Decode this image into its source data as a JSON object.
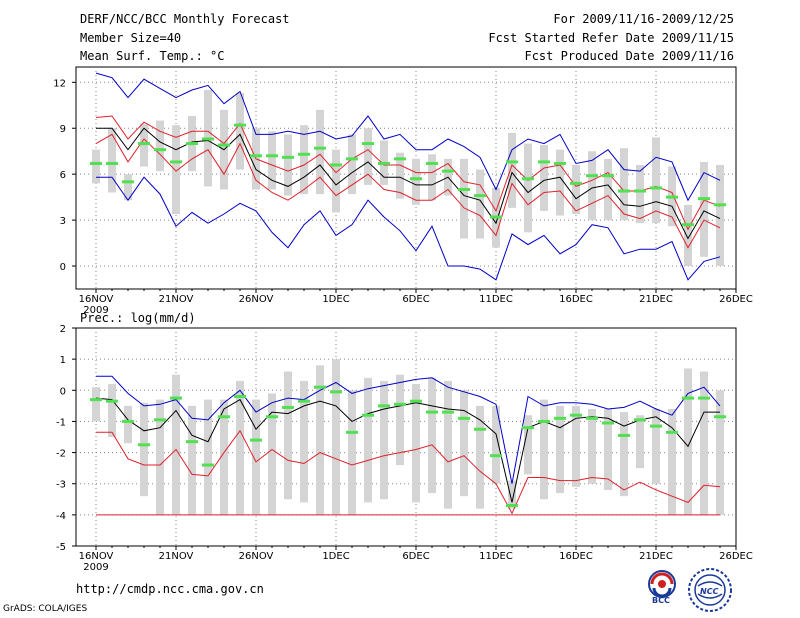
{
  "header": {
    "title": "DERF/NCC/BCC Monthly Forecast",
    "member_size": "Member Size=40",
    "variable": "Mean Surf. Temp.: °C",
    "period": "For 2009/11/16-2009/12/25",
    "started": "Fcst Started Refer Date 2009/11/15",
    "produced": "Fcst Produced Date 2009/11/16"
  },
  "footer": {
    "url": "http://cmdp.ncc.cma.gov.cn",
    "grads": "GrADS: COLA/IGES",
    "logo1_text": "BCC",
    "logo2_text": "NCC"
  },
  "colors": {
    "mean": "#000000",
    "upper": "#0000c8",
    "red": "#e0202a",
    "obs": "#50e050",
    "box": "#d4d4d4",
    "grid": "#888888"
  },
  "chart_data": [
    {
      "type": "line",
      "name": "temperature",
      "title": "",
      "ylabel": "",
      "ylim": [
        -1.5,
        13
      ],
      "yticks": [
        0,
        3,
        6,
        9,
        12
      ],
      "xlim": [
        0,
        40
      ],
      "xticks": [
        {
          "day": 0,
          "label": "16NOV"
        },
        {
          "day": 5,
          "label": "21NOV"
        },
        {
          "day": 10,
          "label": "26NOV"
        },
        {
          "day": 15,
          "label": "1DEC"
        },
        {
          "day": 20,
          "label": "6DEC"
        },
        {
          "day": 25,
          "label": "11DEC"
        },
        {
          "day": 30,
          "label": "16DEC"
        },
        {
          "day": 35,
          "label": "21DEC"
        },
        {
          "day": 40,
          "label": "26DEC"
        }
      ],
      "year_label": "2009",
      "x": [
        0,
        1,
        2,
        3,
        4,
        5,
        6,
        7,
        8,
        9,
        10,
        11,
        12,
        13,
        14,
        15,
        16,
        17,
        18,
        19,
        20,
        21,
        22,
        23,
        24,
        25,
        26,
        27,
        28,
        29,
        30,
        31,
        32,
        33,
        34,
        35,
        36,
        37,
        38,
        39
      ],
      "series": [
        {
          "name": "max",
          "color_key": "upper",
          "values": [
            12.6,
            12.3,
            11.0,
            12.2,
            11.6,
            11.0,
            11.5,
            11.8,
            10.6,
            11.4,
            8.6,
            8.6,
            8.8,
            8.6,
            8.8,
            8.3,
            8.5,
            9.8,
            8.3,
            8.6,
            7.6,
            7.6,
            8.3,
            7.8,
            7.1,
            5.0,
            7.6,
            8.3,
            8.0,
            8.6,
            6.7,
            6.9,
            7.6,
            6.3,
            6.2,
            7.1,
            6.8,
            4.3,
            6.1,
            5.6
          ]
        },
        {
          "name": "upper_red",
          "color_key": "red",
          "values": [
            9.7,
            9.8,
            8.3,
            9.4,
            8.8,
            8.4,
            8.8,
            8.8,
            8.0,
            9.3,
            7.0,
            6.6,
            6.2,
            6.6,
            7.3,
            6.1,
            7.0,
            7.6,
            6.6,
            6.6,
            6.1,
            6.1,
            6.7,
            5.5,
            5.3,
            3.6,
            6.6,
            5.6,
            6.4,
            6.6,
            5.2,
            5.6,
            6.1,
            4.9,
            4.9,
            5.2,
            4.8,
            2.4,
            4.3,
            3.9
          ]
        },
        {
          "name": "mean",
          "color_key": "mean",
          "values": [
            9.0,
            9.0,
            7.6,
            9.0,
            8.1,
            7.6,
            8.1,
            8.2,
            7.6,
            8.6,
            6.3,
            5.6,
            5.2,
            5.8,
            6.6,
            5.3,
            6.1,
            6.8,
            5.8,
            5.8,
            5.3,
            5.3,
            5.8,
            4.6,
            4.3,
            2.8,
            6.1,
            4.8,
            5.6,
            5.8,
            4.4,
            5.1,
            5.3,
            4.0,
            3.9,
            4.2,
            3.9,
            1.8,
            3.6,
            3.1
          ]
        },
        {
          "name": "lower_red",
          "color_key": "red",
          "values": [
            8.0,
            8.6,
            6.8,
            8.3,
            7.3,
            6.2,
            7.0,
            7.6,
            6.0,
            8.0,
            5.6,
            4.8,
            4.3,
            5.0,
            5.8,
            4.6,
            5.3,
            6.0,
            5.0,
            4.8,
            4.3,
            4.3,
            5.0,
            3.8,
            3.3,
            2.0,
            5.4,
            4.0,
            4.8,
            4.9,
            3.6,
            4.1,
            4.6,
            3.4,
            3.1,
            3.6,
            3.2,
            1.2,
            3.0,
            2.5
          ]
        },
        {
          "name": "min",
          "color_key": "upper",
          "values": [
            5.8,
            5.8,
            4.3,
            5.8,
            4.7,
            2.6,
            3.5,
            2.8,
            3.4,
            4.1,
            3.6,
            2.2,
            1.2,
            2.7,
            3.6,
            2.0,
            2.7,
            4.3,
            3.2,
            2.3,
            1.0,
            2.6,
            0.0,
            0.0,
            -0.2,
            -0.9,
            2.1,
            1.4,
            2.0,
            0.8,
            1.4,
            2.7,
            2.5,
            0.8,
            1.1,
            1.1,
            1.6,
            -0.9,
            0.3,
            0.6
          ]
        }
      ],
      "obs": [
        6.7,
        6.7,
        5.5,
        8.0,
        7.6,
        6.8,
        8.0,
        8.3,
        7.9,
        9.2,
        7.2,
        7.2,
        7.1,
        7.3,
        7.7,
        6.6,
        7.0,
        8.0,
        6.7,
        7.0,
        5.7,
        6.7,
        6.2,
        5.0,
        4.6,
        3.2,
        6.8,
        5.7,
        6.8,
        6.7,
        5.4,
        5.9,
        5.9,
        4.9,
        4.9,
        5.1,
        4.5,
        2.7,
        4.4,
        4.0
      ],
      "boxes": [
        {
          "lo": 5.4,
          "hi": 7.6
        },
        {
          "lo": 4.8,
          "hi": 9.0
        },
        {
          "lo": 4.3,
          "hi": 6.0
        },
        {
          "lo": 6.5,
          "hi": 9.3
        },
        {
          "lo": 6.2,
          "hi": 9.5
        },
        {
          "lo": 3.4,
          "hi": 9.2
        },
        {
          "lo": 6.2,
          "hi": 9.8
        },
        {
          "lo": 5.2,
          "hi": 11.5
        },
        {
          "lo": 5.0,
          "hi": 10.2
        },
        {
          "lo": 6.3,
          "hi": 11.3
        },
        {
          "lo": 5.0,
          "hi": 9.0
        },
        {
          "lo": 5.0,
          "hi": 8.8
        },
        {
          "lo": 4.6,
          "hi": 8.6
        },
        {
          "lo": 4.7,
          "hi": 9.2
        },
        {
          "lo": 4.7,
          "hi": 10.2
        },
        {
          "lo": 3.5,
          "hi": 7.6
        },
        {
          "lo": 4.7,
          "hi": 8.6
        },
        {
          "lo": 5.3,
          "hi": 9.0
        },
        {
          "lo": 5.3,
          "hi": 8.2
        },
        {
          "lo": 4.4,
          "hi": 7.4
        },
        {
          "lo": 4.0,
          "hi": 7.0
        },
        {
          "lo": 4.3,
          "hi": 7.3
        },
        {
          "lo": 4.6,
          "hi": 7.0
        },
        {
          "lo": 1.8,
          "hi": 7.0
        },
        {
          "lo": 1.8,
          "hi": 6.3
        },
        {
          "lo": 1.2,
          "hi": 5.1
        },
        {
          "lo": 3.8,
          "hi": 8.7
        },
        {
          "lo": 2.2,
          "hi": 8.0
        },
        {
          "lo": 3.6,
          "hi": 7.9
        },
        {
          "lo": 3.3,
          "hi": 7.6
        },
        {
          "lo": 3.4,
          "hi": 6.6
        },
        {
          "lo": 3.0,
          "hi": 7.5
        },
        {
          "lo": 3.0,
          "hi": 7.0
        },
        {
          "lo": 3.0,
          "hi": 7.7
        },
        {
          "lo": 2.8,
          "hi": 6.6
        },
        {
          "lo": 2.8,
          "hi": 8.4
        },
        {
          "lo": 2.6,
          "hi": 6.5
        },
        {
          "lo": 0.0,
          "hi": 4.0
        },
        {
          "lo": 0.6,
          "hi": 6.8
        },
        {
          "lo": 0.0,
          "hi": 6.6
        }
      ]
    },
    {
      "type": "line",
      "name": "precipitation",
      "title": "Prec.: log(mm/d)",
      "ylim": [
        -5,
        2
      ],
      "yticks": [
        -5,
        -4,
        -3,
        -2,
        -1,
        0,
        1,
        2
      ],
      "xlim": [
        0,
        40
      ],
      "xticks": [
        {
          "day": 0,
          "label": "16NOV"
        },
        {
          "day": 5,
          "label": "21NOV"
        },
        {
          "day": 10,
          "label": "26NOV"
        },
        {
          "day": 15,
          "label": "1DEC"
        },
        {
          "day": 20,
          "label": "6DEC"
        },
        {
          "day": 25,
          "label": "11DEC"
        },
        {
          "day": 30,
          "label": "16DEC"
        },
        {
          "day": 35,
          "label": "21DEC"
        },
        {
          "day": 40,
          "label": "26DEC"
        }
      ],
      "year_label": "2009",
      "x": [
        0,
        1,
        2,
        3,
        4,
        5,
        6,
        7,
        8,
        9,
        10,
        11,
        12,
        13,
        14,
        15,
        16,
        17,
        18,
        19,
        20,
        21,
        22,
        23,
        24,
        25,
        26,
        27,
        28,
        29,
        30,
        31,
        32,
        33,
        34,
        35,
        36,
        37,
        38,
        39
      ],
      "series": [
        {
          "name": "max",
          "color_key": "upper",
          "values": [
            0.45,
            0.45,
            -0.1,
            -0.5,
            -0.45,
            -0.3,
            -0.9,
            -0.95,
            -0.4,
            0.0,
            -0.7,
            -0.4,
            -0.25,
            -0.3,
            0.0,
            0.25,
            -0.1,
            0.05,
            0.15,
            0.25,
            0.35,
            0.4,
            0.1,
            -0.05,
            -0.2,
            -0.45,
            -3.0,
            -0.2,
            -0.5,
            -0.4,
            -0.4,
            -0.45,
            -0.6,
            -0.55,
            -0.35,
            -0.6,
            -0.8,
            -0.1,
            0.1,
            -0.5
          ]
        },
        {
          "name": "mean",
          "color_key": "mean",
          "values": [
            -0.25,
            -0.3,
            -0.95,
            -1.3,
            -1.2,
            -0.65,
            -1.45,
            -1.65,
            -0.6,
            -0.3,
            -1.25,
            -0.7,
            -0.75,
            -0.5,
            -0.35,
            -0.5,
            -1.0,
            -0.75,
            -0.6,
            -0.5,
            -0.4,
            -0.5,
            -0.6,
            -0.65,
            -0.95,
            -1.4,
            -3.6,
            -1.2,
            -1.0,
            -1.2,
            -0.9,
            -0.85,
            -0.9,
            -1.15,
            -0.95,
            -0.85,
            -1.2,
            -1.8,
            -0.7,
            -0.7
          ]
        },
        {
          "name": "lower_red",
          "color_key": "red",
          "values": [
            -1.35,
            -1.35,
            -2.2,
            -2.4,
            -2.4,
            -1.9,
            -2.7,
            -2.75,
            -2.0,
            -1.3,
            -2.3,
            -1.9,
            -2.25,
            -2.35,
            -2.0,
            -2.2,
            -2.4,
            -2.25,
            -2.1,
            -2.0,
            -1.9,
            -1.75,
            -2.3,
            -2.1,
            -2.6,
            -3.0,
            -3.95,
            -2.8,
            -2.8,
            -2.9,
            -2.9,
            -2.8,
            -2.85,
            -3.2,
            -2.95,
            -3.2,
            -3.4,
            -3.6,
            -3.05,
            -3.1
          ]
        },
        {
          "name": "min",
          "color_key": "red",
          "values": [
            -4.0,
            -4.0,
            -4.0,
            -4.0,
            -4.0,
            -4.0,
            -4.0,
            -4.0,
            -4.0,
            -4.0,
            -4.0,
            -4.0,
            -4.0,
            -4.0,
            -4.0,
            -4.0,
            -4.0,
            -4.0,
            -4.0,
            -4.0,
            -4.0,
            -4.0,
            -4.0,
            -4.0,
            -4.0,
            -4.0,
            -4.0,
            -4.0,
            -4.0,
            -4.0,
            -4.0,
            -4.0,
            -4.0,
            -4.0,
            -4.0,
            -4.0,
            -4.0,
            -4.0,
            -4.0,
            -4.0
          ]
        }
      ],
      "obs": [
        -0.3,
        -0.35,
        -1.0,
        -1.75,
        -0.95,
        -0.25,
        -1.65,
        -2.4,
        -0.85,
        -0.2,
        -1.6,
        -0.85,
        -0.55,
        -0.35,
        0.1,
        -0.05,
        -1.35,
        -0.8,
        -0.5,
        -0.45,
        -0.35,
        -0.7,
        -0.7,
        -0.9,
        -1.25,
        -2.1,
        -3.7,
        -1.2,
        -1.0,
        -0.9,
        -0.8,
        -0.9,
        -1.05,
        -1.45,
        -0.95,
        -1.15,
        -1.35,
        -0.25,
        -0.25,
        -0.85
      ],
      "boxes": [
        {
          "lo": -1.0,
          "hi": 0.1
        },
        {
          "lo": -1.5,
          "hi": 0.2
        },
        {
          "lo": -1.7,
          "hi": -0.5
        },
        {
          "lo": -3.4,
          "hi": -0.4
        },
        {
          "lo": -4.0,
          "hi": -0.3
        },
        {
          "lo": -4.0,
          "hi": 0.5
        },
        {
          "lo": -4.0,
          "hi": -0.5
        },
        {
          "lo": -4.0,
          "hi": -0.3
        },
        {
          "lo": -4.0,
          "hi": -0.3
        },
        {
          "lo": -4.0,
          "hi": 0.3
        },
        {
          "lo": -4.0,
          "hi": -0.3
        },
        {
          "lo": -4.0,
          "hi": -0.1
        },
        {
          "lo": -3.5,
          "hi": 0.6
        },
        {
          "lo": -3.6,
          "hi": 0.3
        },
        {
          "lo": -4.0,
          "hi": 0.8
        },
        {
          "lo": -4.0,
          "hi": 1.0
        },
        {
          "lo": -4.0,
          "hi": 0.0
        },
        {
          "lo": -3.6,
          "hi": 0.4
        },
        {
          "lo": -3.5,
          "hi": 0.3
        },
        {
          "lo": -2.4,
          "hi": 0.5
        },
        {
          "lo": -3.6,
          "hi": 0.2
        },
        {
          "lo": -3.3,
          "hi": 0.4
        },
        {
          "lo": -3.8,
          "hi": 0.3
        },
        {
          "lo": -3.4,
          "hi": 0.0
        },
        {
          "lo": -3.8,
          "hi": -0.5
        },
        {
          "lo": -3.0,
          "hi": -0.5
        },
        {
          "lo": -3.8,
          "hi": -2.9
        },
        {
          "lo": -2.7,
          "hi": -0.8
        },
        {
          "lo": -3.5,
          "hi": -0.3
        },
        {
          "lo": -3.3,
          "hi": -0.5
        },
        {
          "lo": -3.1,
          "hi": -0.5
        },
        {
          "lo": -3.0,
          "hi": -0.6
        },
        {
          "lo": -3.2,
          "hi": -0.6
        },
        {
          "lo": -3.4,
          "hi": -0.7
        },
        {
          "lo": -2.5,
          "hi": -0.8
        },
        {
          "lo": -3.0,
          "hi": -0.6
        },
        {
          "lo": -4.0,
          "hi": -0.6
        },
        {
          "lo": -4.0,
          "hi": 0.7
        },
        {
          "lo": -4.0,
          "hi": 0.6
        },
        {
          "lo": -4.0,
          "hi": 0.0
        }
      ]
    }
  ]
}
